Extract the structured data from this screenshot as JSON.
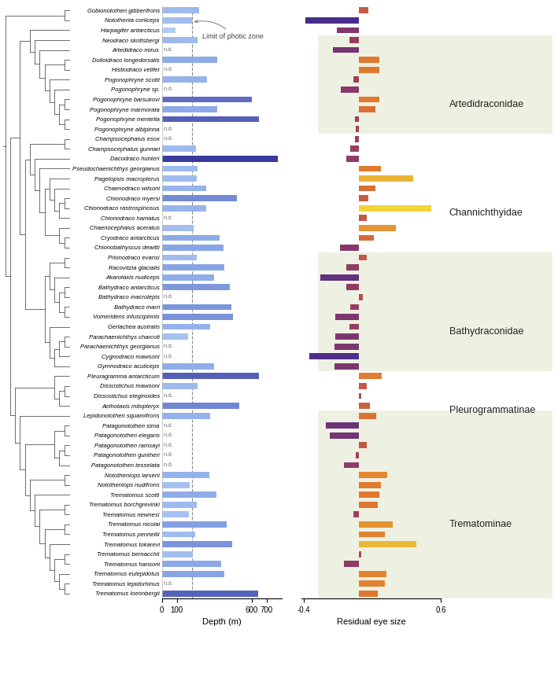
{
  "chart_data": [
    {
      "type": "bar",
      "orientation": "horizontal",
      "xlabel": "Depth (m)",
      "categories": [
        "Gobionotothen gibberifrons",
        "Notothenia coriiceps",
        "Harpagifer antarcticus",
        "Neodraco skottsbergi",
        "Artedidraco mirus",
        "Dolloidraco longedorsalis",
        "Histiodraco velifer",
        "Pogonophryne scotti",
        "Pogonophryne sp.",
        "Pogonophryne barsukovi",
        "Pogonophryne marmorata",
        "Pogonophryne mentella",
        "Pogonophryne albipinna",
        "Champsocephalus esox",
        "Champsocephalus gunnari",
        "Dacodraco hunteri",
        "Pseudochaenichthys georgianus",
        "Pagetopsis macropterus",
        "Chaenodraco wilsoni",
        "Chionodraco myersi",
        "Chionodraco rastrospinosus",
        "Chionodraco hamatus",
        "Chaenocephalus aceratus",
        "Cryodraco antarcticus",
        "Chionobathyscus dewitti",
        "Prionodraco evansi",
        "Racovitzia glacialis",
        "Akarotaxis nudiceps",
        "Bathydraco antarcticus",
        "Bathydraco macrolepis",
        "Bathydraco marri",
        "Vomeridens infuscipinnis",
        "Gerlachea australis",
        "Parachaenichthys charcoti",
        "Parachaenichthys georgianus",
        "Cygnodraco mawsoni",
        "Gymnodraco acuticeps",
        "Pleuragramma antarcticum",
        "Dissostichus mawsoni",
        "Dissostichus eleginoides",
        "Aethotaxis mitopteryx",
        "Lepidonotothen squamifrons",
        "Patagonotothen sima",
        "Patagonotothen elegans",
        "Patagonotothen ramsayi",
        "Patagonotothen guntheri",
        "Patagonotothen tesselata",
        "Nototheniops larseni",
        "Nototheniops nudifrons",
        "Trematomus scotti",
        "Trematomus borchgrevinki",
        "Trematomus newnesi",
        "Trematomus nicolai",
        "Trematomus pennellii",
        "Trematomus tokarevi",
        "Trematomus bernacchii",
        "Trematomus hansoni",
        "Trematomus eulepidotus",
        "Trematomus lepidorhinus",
        "Trematomus loennbergii"
      ],
      "values": [
        250,
        200,
        90,
        240,
        null,
        370,
        null,
        300,
        null,
        600,
        370,
        650,
        null,
        null,
        230,
        775,
        240,
        235,
        295,
        500,
        295,
        null,
        210,
        385,
        410,
        235,
        415,
        350,
        455,
        null,
        465,
        475,
        320,
        175,
        null,
        null,
        350,
        650,
        240,
        null,
        515,
        320,
        null,
        null,
        null,
        null,
        null,
        315,
        185,
        365,
        235,
        180,
        430,
        225,
        470,
        205,
        395,
        415,
        null,
        640
      ],
      "missing_label": "n.d.",
      "reference_line": {
        "value": 200,
        "label": "Limit of photic zone"
      },
      "xlim": [
        0,
        800
      ],
      "xticks": [
        0,
        100,
        600,
        700
      ],
      "tick_labels": true
    },
    {
      "type": "bar",
      "orientation": "horizontal",
      "xlabel": "Residual eye size",
      "categories": [
        "Gobionotothen gibberifrons",
        "Notothenia coriiceps",
        "Harpagifer antarcticus",
        "Neodraco skottsbergi",
        "Artedidraco mirus",
        "Dolloidraco longedorsalis",
        "Histiodraco velifer",
        "Pogonophryne scotti",
        "Pogonophryne sp.",
        "Pogonophryne barsukovi",
        "Pogonophryne marmorata",
        "Pogonophryne mentella",
        "Pogonophryne albipinna",
        "Champsocephalus esox",
        "Champsocephalus gunnari",
        "Dacodraco hunteri",
        "Pseudochaenichthys georgianus",
        "Pagetopsis macropterus",
        "Chaenodraco wilsoni",
        "Chionodraco myersi",
        "Chionodraco rastrospinosus",
        "Chionodraco hamatus",
        "Chaenocephalus aceratus",
        "Cryodraco antarcticus",
        "Chionobathyscus dewitti",
        "Prionodraco evansi",
        "Racovitzia glacialis",
        "Akarotaxis nudiceps",
        "Bathydraco antarcticus",
        "Bathydraco macrolepis",
        "Bathydraco marri",
        "Vomeridens infuscipinnis",
        "Gerlachea australis",
        "Parachaenichthys charcoti",
        "Parachaenichthys georgianus",
        "Cygnodraco mawsoni",
        "Gymnodraco acuticeps",
        "Pleuragramma antarcticum",
        "Dissostichus mawsoni",
        "Dissostichus eleginoides",
        "Aethotaxis mitopteryx",
        "Lepidonotothen squamifrons",
        "Patagonotothen sima",
        "Patagonotothen elegans",
        "Patagonotothen ramsayi",
        "Patagonotothen guntheri",
        "Patagonotothen tesselata",
        "Nototheniops larseni",
        "Nototheniops nudifrons",
        "Trematomus scotti",
        "Trematomus borchgrevinki",
        "Trematomus newnesi",
        "Trematomus nicolai",
        "Trematomus pennellii",
        "Trematomus tokarevi",
        "Trematomus bernacchii",
        "Trematomus hansoni",
        "Trematomus eulepidotus",
        "Trematomus lepidorhinus",
        "Trematomus loennbergii"
      ],
      "values": [
        0.07,
        -0.39,
        -0.16,
        -0.07,
        -0.19,
        0.15,
        0.15,
        -0.04,
        -0.13,
        0.15,
        0.12,
        -0.03,
        -0.02,
        -0.03,
        -0.06,
        -0.09,
        0.16,
        0.4,
        0.12,
        0.07,
        0.53,
        0.06,
        0.27,
        0.11,
        -0.14,
        0.06,
        -0.09,
        -0.28,
        -0.09,
        0.03,
        -0.06,
        -0.17,
        -0.07,
        -0.17,
        -0.18,
        -0.36,
        -0.18,
        0.17,
        0.06,
        0.02,
        0.08,
        0.13,
        -0.24,
        -0.21,
        0.06,
        -0.02,
        -0.11,
        0.21,
        0.16,
        0.15,
        0.14,
        -0.04,
        0.25,
        0.19,
        0.42,
        0.02,
        -0.11,
        0.2,
        0.19,
        0.14
      ],
      "xlim": [
        -0.42,
        0.6
      ],
      "xticks": [
        -0.4,
        0.6
      ],
      "tick_labels": "x"
    }
  ],
  "groups": [
    {
      "name": "Artedidraconidae",
      "from": "Neodraco skottsbergi",
      "to": "Pogonophryne albipinna",
      "shaded": true
    },
    {
      "name": "Channichthyidae",
      "from": "Champsocephalus esox",
      "to": "Chionobathyscus dewitti",
      "shaded": false
    },
    {
      "name": "Bathydraconidae",
      "from": "Prionodraco evansi",
      "to": "Gymnodraco acuticeps",
      "shaded": true
    },
    {
      "name": "Pleurogrammatinae",
      "from": "Pleuragramma antarcticum",
      "to": "Aethotaxis mitopteryx",
      "shaded": false
    },
    {
      "name": "Trematominae",
      "from": "Lepidonotothen squamifrons",
      "to": "Trematomus loennbergii",
      "shaded": true
    }
  ],
  "phylogeny": [
    [
      "Gobionotothen gibberifrons",
      "Notothenia coriiceps"
    ],
    [
      [
        [
          "Harpagifer antarcticus",
          [
            "Neodraco skottsbergi",
            [
              "Artedidraco mirus",
              [
                [
                  "Dolloidraco longedorsalis",
                  "Histiodraco velifer"
                ],
                [
                  "Pogonophryne scotti",
                  [
                    "Pogonophryne sp.",
                    [
                      [
                        "Pogonophryne barsukovi",
                        "Pogonophryne marmorata"
                      ],
                      [
                        "Pogonophryne mentella",
                        "Pogonophryne albipinna"
                      ]
                    ]
                  ]
                ]
              ]
            ]
          ]
        ],
        [
          [
            [
              "Champsocephalus esox",
              "Champsocephalus gunnari"
            ],
            [
              "Dacodraco hunteri",
              [
                "Pseudochaenichthys georgianus",
                [
                  [
                    "Pagetopsis macropterus",
                    [
                      "Chaenodraco wilsoni",
                      [
                        [
                          "Chionodraco myersi",
                          "Chionodraco rastrospinosus"
                        ],
                        "Chionodraco hamatus"
                      ]
                    ]
                  ],
                  [
                    "Chaenocephalus aceratus",
                    [
                      "Cryodraco antarcticus",
                      "Chionobathyscus dewitti"
                    ]
                  ]
                ]
              ]
            ]
          ],
          [
            [
              [
                "Prionodraco evansi",
                "Racovitzia glacialis"
              ],
              [
                "Akarotaxis nudiceps",
                [
                  [
                    "Bathydraco antarcticus",
                    "Bathydraco macrolepis"
                  ],
                  [
                    "Bathydraco marri",
                    "Vomeridens infuscipinnis"
                  ]
                ]
              ]
            ],
            [
              "Gerlachea australis",
              [
                [
                  [
                    "Parachaenichthys charcoti",
                    "Parachaenichthys georgianus"
                  ],
                  "Cygnodraco mawsoni"
                ],
                "Gymnodraco acuticeps"
              ]
            ]
          ]
        ]
      ],
      [
        [
          "Pleuragramma antarcticum",
          [
            [
              "Dissostichus mawsoni",
              "Dissostichus eleginoides"
            ],
            "Aethotaxis mitopteryx"
          ]
        ],
        [
          "Lepidonotothen squamifrons",
          [
            [
              [
                "Patagonotothen sima",
                "Patagonotothen elegans"
              ],
              [
                [
                  "Patagonotothen ramsayi",
                  "Patagonotothen guntheri"
                ],
                "Patagonotothen tesselata"
              ]
            ],
            [
              [
                "Nototheniops larseni",
                "Nototheniops nudifrons"
              ],
              [
                "Trematomus scotti",
                [
                  [
                    "Trematomus borchgrevinki",
                    "Trematomus newnesi"
                  ],
                  [
                    [
                      "Trematomus nicolai",
                      "Trematomus pennellii"
                    ],
                    [
                      "Trematomus tokarevi",
                      [
                        [
                          "Trematomus bernacchii",
                          "Trematomus hansoni"
                        ],
                        [
                          "Trematomus eulepidotus",
                          [
                            "Trematomus lepidorhinus",
                            "Trematomus loennbergii"
                          ]
                        ]
                      ]
                    ]
                  ]
                ]
              ]
            ]
          ]
        ]
      ]
    ]
  ]
}
